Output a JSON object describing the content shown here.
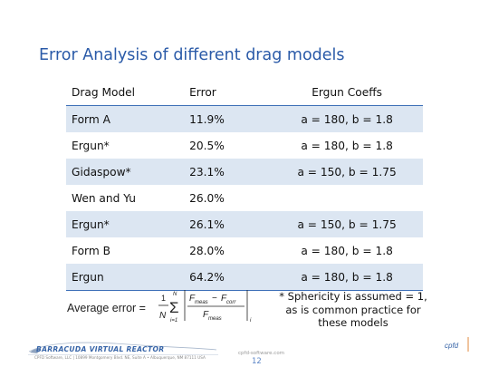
{
  "slide": {
    "title": "Error Analysis of different drag models"
  },
  "table": {
    "headers": {
      "model": "Drag Model",
      "error": "Error",
      "coeffs": "Ergun Coeffs"
    },
    "rows": [
      {
        "model": "Form A",
        "error": "11.9%",
        "coeffs": "a = 180, b = 1.8"
      },
      {
        "model": "Ergun*",
        "error": "20.5%",
        "coeffs": "a = 180, b = 1.8"
      },
      {
        "model": "Gidaspow*",
        "error": "23.1%",
        "coeffs": "a = 150, b = 1.75"
      },
      {
        "model": "Wen and Yu",
        "error": "26.0%",
        "coeffs": ""
      },
      {
        "model": "Ergun*",
        "error": "26.1%",
        "coeffs": "a = 150, b = 1.75"
      },
      {
        "model": "Form B",
        "error": "28.0%",
        "coeffs": "a = 180, b = 1.8"
      },
      {
        "model": "Ergun",
        "error": "64.2%",
        "coeffs": "a = 180, b = 1.8"
      }
    ]
  },
  "formula": {
    "lhs": "Average error =",
    "numerator_one": "1",
    "denominator_n": "N",
    "sum_upper": "N",
    "sum_lower": "i=1",
    "sigma": "Σ",
    "f_meas": "F",
    "f_meas_sub": "meas",
    "minus": "−",
    "f_corr": "F",
    "f_corr_sub": "corr",
    "f_den": "F",
    "f_den_sub": "meas",
    "index": "i"
  },
  "note": {
    "line1": "* Sphericity is assumed = 1,",
    "line2": "as is common practice for",
    "line3": "these models"
  },
  "footer": {
    "brand": "BARRACUDA VIRTUAL REACTOR",
    "address": "CPFD Software, LLC  |  10899 Montgomery Blvd. NE, Suite A  •  Albuquerque, NM 87111  USA",
    "website": "cpfd-software.com",
    "page_number": "12",
    "corner_logo": "cpfd"
  },
  "colors": {
    "title": "#2a5aa8",
    "band": "#dce6f2",
    "rule": "#3d6fb7",
    "brand": "#3865a8"
  }
}
